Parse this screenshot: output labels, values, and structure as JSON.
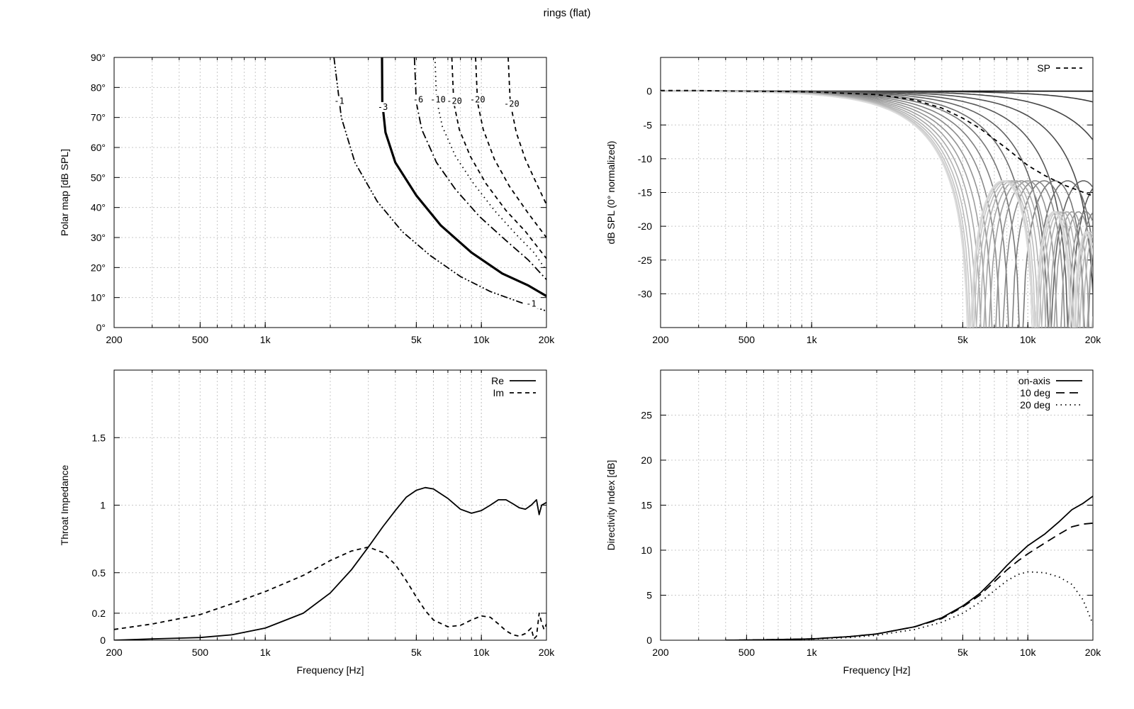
{
  "title": "rings (flat)",
  "chart_data": [
    {
      "id": "polar",
      "type": "line",
      "subtype": "contour",
      "title": "",
      "xlabel": "",
      "ylabel": "Polar map [dB SPL]",
      "xscale": "log",
      "xlim": [
        200,
        20000
      ],
      "ylim": [
        0,
        90
      ],
      "xticks": [
        200,
        500,
        1000,
        5000,
        10000,
        20000
      ],
      "xtick_labels": [
        "200",
        "500",
        "1k",
        "5k",
        "10k",
        "20k"
      ],
      "yticks": [
        0,
        10,
        20,
        30,
        40,
        50,
        60,
        70,
        80,
        90
      ],
      "ytick_labels": [
        "0°",
        "10°",
        "20°",
        "30°",
        "40°",
        "50°",
        "60°",
        "70°",
        "80°",
        "90°"
      ],
      "series": [
        {
          "name": "-1",
          "style": "dashdotdot",
          "width": 1.8,
          "x": [
            2080,
            2250,
            2600,
            3300,
            4300,
            5800,
            8000,
            11000,
            15000,
            20000
          ],
          "y": [
            90,
            70,
            55,
            42,
            32,
            24,
            17,
            12,
            8.5,
            5.5
          ]
        },
        {
          "name": "-3",
          "style": "solid",
          "width": 3.2,
          "x": [
            3470,
            3480,
            3600,
            4000,
            5000,
            6500,
            9000,
            12500,
            16500,
            20000
          ],
          "y": [
            90,
            75,
            65,
            55,
            44,
            34,
            25,
            18,
            14,
            10.5
          ]
        },
        {
          "name": "-6",
          "style": "dashdot",
          "width": 1.8,
          "x": [
            4900,
            5000,
            5300,
            6200,
            7600,
            9800,
            13000,
            16500,
            20000
          ],
          "y": [
            90,
            75,
            66,
            55,
            46,
            37,
            29,
            22.5,
            16
          ]
        },
        {
          "name": "-10",
          "style": "dotted",
          "width": 1.8,
          "x": [
            6100,
            6200,
            6600,
            7600,
            9200,
            11500,
            14500,
            17500,
            20000
          ],
          "y": [
            90,
            76,
            67,
            57,
            48,
            39,
            31,
            25,
            19
          ]
        },
        {
          "name": "-20",
          "style": "dashed",
          "width": 1.8,
          "x": [
            7300,
            7450,
            7900,
            8900,
            10500,
            13000,
            16000,
            20000
          ],
          "y": [
            90,
            75,
            66,
            57,
            48,
            39,
            32,
            23
          ]
        },
        {
          "name": "-20",
          "style": "dashed",
          "width": 1.8,
          "x": [
            9400,
            9600,
            10200,
            11500,
            13500,
            16500,
            20000
          ],
          "y": [
            90,
            75,
            66,
            56,
            47,
            38,
            30
          ]
        },
        {
          "name": "-20",
          "style": "dashed",
          "width": 1.8,
          "x": [
            13300,
            13600,
            14500,
            16000,
            18000,
            20000
          ],
          "y": [
            90,
            75,
            65,
            56,
            48,
            41
          ]
        }
      ],
      "contour_labels": [
        {
          "text": "-1",
          "x": 2200,
          "y": 75
        },
        {
          "text": "-3",
          "x": 3500,
          "y": 73
        },
        {
          "text": "-6",
          "x": 5100,
          "y": 75.5
        },
        {
          "text": "-10",
          "x": 6300,
          "y": 75.5
        },
        {
          "text": "-20",
          "x": 7500,
          "y": 75
        },
        {
          "text": "-20",
          "x": 9600,
          "y": 75.5
        },
        {
          "text": "-20",
          "x": 13800,
          "y": 74
        },
        {
          "text": "-1",
          "x": 17000,
          "y": 7.5
        }
      ]
    },
    {
      "id": "spl",
      "type": "line",
      "title": "",
      "xlabel": "",
      "ylabel": "dB SPL (0° normalized)",
      "xscale": "log",
      "xlim": [
        200,
        20000
      ],
      "ylim": [
        -35,
        5
      ],
      "xticks": [
        200,
        500,
        1000,
        5000,
        10000,
        20000
      ],
      "xtick_labels": [
        "200",
        "500",
        "1k",
        "5k",
        "10k",
        "20k"
      ],
      "yticks": [
        0,
        -5,
        -10,
        -15,
        -20,
        -25,
        -30
      ],
      "ytick_labels": [
        "0",
        "-5",
        "-10",
        "-15",
        "-20",
        "-25",
        "-30"
      ],
      "legend": {
        "position": "top-right",
        "entries": [
          {
            "label": "SP",
            "style": "dashed"
          }
        ]
      },
      "polar_curves": {
        "description_angles_deg": [
          0,
          5,
          10,
          15,
          20,
          25,
          30,
          35,
          40,
          45,
          50,
          55,
          60,
          65,
          70,
          75,
          80,
          85,
          90
        ],
        "colors": [
          "#000000",
          "#3a3a3a",
          "#444444",
          "#4e4e4e",
          "#585858",
          "#626262",
          "#6c6c6c",
          "#767676",
          "#808080",
          "#8a8a8a",
          "#949494",
          "#9e9e9e",
          "#a8a8a8",
          "#b2b2b2",
          "#bcbcbc",
          "#c6c6c6",
          "#cfcfcf",
          "#d6d6d6",
          "#dcdcdc"
        ]
      },
      "series": [
        {
          "name": "SP",
          "style": "dashed",
          "x": [
            200,
            300,
            500,
            1000,
            2000,
            3000,
            4000,
            5000,
            6000,
            8000,
            10000,
            12000,
            15000,
            20000
          ],
          "y": [
            0.1,
            0.1,
            0.0,
            -0.1,
            -0.5,
            -1.3,
            -2.5,
            -4.0,
            -5.5,
            -8.5,
            -11.0,
            -12.5,
            -14.0,
            -15.5
          ]
        }
      ]
    },
    {
      "id": "impedance",
      "type": "line",
      "title": "",
      "xlabel": "Frequency [Hz]",
      "ylabel": "Throat Impedance",
      "xscale": "log",
      "xlim": [
        200,
        20000
      ],
      "ylim": [
        0,
        2
      ],
      "xticks": [
        200,
        500,
        1000,
        5000,
        10000,
        20000
      ],
      "xtick_labels": [
        "200",
        "500",
        "1k",
        "5k",
        "10k",
        "20k"
      ],
      "yticks": [
        0,
        0.2,
        0.5,
        1,
        1.5
      ],
      "ytick_labels": [
        "0",
        "0.2",
        "0.5",
        "1",
        "1.5"
      ],
      "legend": {
        "position": "top-right",
        "entries": [
          {
            "label": "Re",
            "style": "solid"
          },
          {
            "label": "Im",
            "style": "dashed"
          }
        ]
      },
      "series": [
        {
          "name": "Re",
          "style": "solid",
          "x": [
            200,
            300,
            500,
            700,
            1000,
            1500,
            2000,
            2500,
            3000,
            3500,
            4000,
            4500,
            5000,
            5500,
            6000,
            7000,
            8000,
            9000,
            10000,
            11000,
            12000,
            13000,
            14000,
            15000,
            16000,
            17000,
            18000,
            18500,
            19000,
            20000
          ],
          "y": [
            0.0,
            0.01,
            0.02,
            0.04,
            0.09,
            0.2,
            0.35,
            0.52,
            0.69,
            0.84,
            0.96,
            1.06,
            1.11,
            1.13,
            1.12,
            1.05,
            0.97,
            0.94,
            0.96,
            1.0,
            1.04,
            1.04,
            1.01,
            0.98,
            0.97,
            1.0,
            1.04,
            0.93,
            1.0,
            1.02
          ]
        },
        {
          "name": "Im",
          "style": "dashed",
          "x": [
            200,
            300,
            500,
            700,
            1000,
            1500,
            2000,
            2500,
            3000,
            3500,
            4000,
            4500,
            5000,
            5500,
            6000,
            7000,
            8000,
            9000,
            10000,
            11000,
            12000,
            13000,
            14000,
            15000,
            16000,
            17000,
            17500,
            18000,
            18500,
            19000,
            19500,
            20000
          ],
          "y": [
            0.08,
            0.12,
            0.19,
            0.27,
            0.36,
            0.48,
            0.59,
            0.66,
            0.69,
            0.65,
            0.56,
            0.44,
            0.32,
            0.22,
            0.15,
            0.1,
            0.11,
            0.15,
            0.18,
            0.17,
            0.12,
            0.07,
            0.04,
            0.03,
            0.05,
            0.09,
            0.01,
            0.03,
            0.2,
            0.13,
            0.08,
            0.12
          ]
        }
      ]
    },
    {
      "id": "directivity",
      "type": "line",
      "title": "",
      "xlabel": "Frequency [Hz]",
      "ylabel": "Directivity Index [dB]",
      "xscale": "log",
      "xlim": [
        200,
        20000
      ],
      "ylim": [
        0,
        30
      ],
      "xticks": [
        200,
        500,
        1000,
        5000,
        10000,
        20000
      ],
      "xtick_labels": [
        "200",
        "500",
        "1k",
        "5k",
        "10k",
        "20k"
      ],
      "yticks": [
        0,
        5,
        10,
        15,
        20,
        25
      ],
      "ytick_labels": [
        "0",
        "5",
        "10",
        "15",
        "20",
        "25"
      ],
      "legend": {
        "position": "top-right",
        "entries": [
          {
            "label": "on-axis",
            "style": "solid"
          },
          {
            "label": "10 deg",
            "style": "longdash"
          },
          {
            "label": "20 deg",
            "style": "dotted"
          }
        ]
      },
      "series": [
        {
          "name": "on-axis",
          "style": "solid",
          "x": [
            400,
            600,
            1000,
            1500,
            2000,
            3000,
            4000,
            5000,
            6000,
            7000,
            8000,
            9000,
            10000,
            12000,
            14000,
            16000,
            18000,
            20000
          ],
          "y": [
            0.0,
            0.05,
            0.15,
            0.4,
            0.7,
            1.5,
            2.5,
            3.8,
            5.2,
            6.8,
            8.3,
            9.5,
            10.5,
            11.8,
            13.2,
            14.5,
            15.2,
            16.0
          ]
        },
        {
          "name": "10 deg",
          "style": "longdash",
          "x": [
            400,
            600,
            1000,
            1500,
            2000,
            3000,
            4000,
            5000,
            6000,
            7000,
            8000,
            9000,
            10000,
            12000,
            14000,
            16000,
            18000,
            20000
          ],
          "y": [
            0.0,
            0.05,
            0.15,
            0.4,
            0.7,
            1.5,
            2.4,
            3.7,
            5.0,
            6.5,
            7.8,
            8.8,
            9.6,
            10.8,
            11.8,
            12.6,
            12.9,
            13.0
          ]
        },
        {
          "name": "20 deg",
          "style": "dotted",
          "x": [
            400,
            600,
            1000,
            1500,
            2000,
            3000,
            4000,
            5000,
            6000,
            7000,
            8000,
            9000,
            10000,
            12000,
            14000,
            16000,
            18000,
            20000
          ],
          "y": [
            0.0,
            0.05,
            0.12,
            0.3,
            0.55,
            1.2,
            2.0,
            3.0,
            4.2,
            5.5,
            6.6,
            7.3,
            7.6,
            7.5,
            7.0,
            6.2,
            4.5,
            1.8
          ]
        }
      ]
    }
  ]
}
